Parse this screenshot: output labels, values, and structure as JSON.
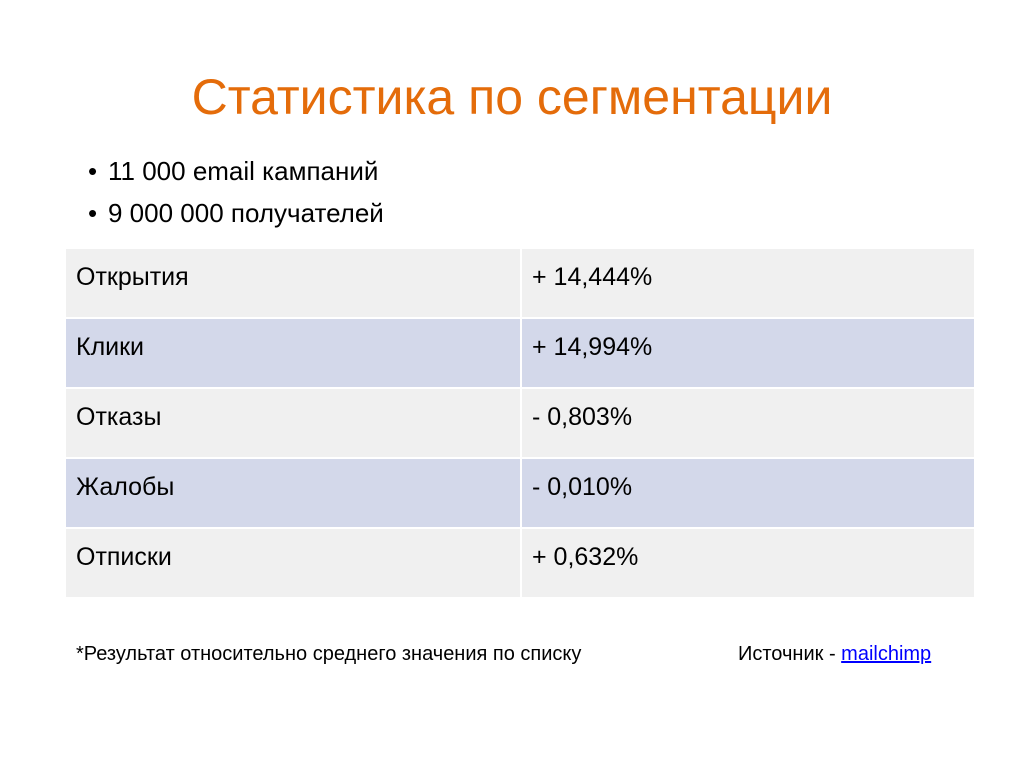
{
  "title": "Статистика по сегментации",
  "bullets": [
    {
      "text": "11 000 email кампаний"
    },
    {
      "text": "9 000 000 получателей"
    }
  ],
  "table": {
    "rows": [
      {
        "metric": "Открытия",
        "value": "+ 14,444%"
      },
      {
        "metric": "Клики",
        "value": "+ 14,994%"
      },
      {
        "metric": "Отказы",
        "value": "- 0,803%"
      },
      {
        "metric": "Жалобы",
        "value": "- 0,010%"
      },
      {
        "metric": "Отписки",
        "value": "+ 0,632%"
      }
    ]
  },
  "footnote": "*Результат относительно среднего значения по списку",
  "source": {
    "prefix": "Источник - ",
    "link_text": "mailchimp"
  },
  "colors": {
    "title": "#E46C0A",
    "row_light": "#F0F0F0",
    "row_dark": "#D3D8EA",
    "link": "#0000FF"
  }
}
